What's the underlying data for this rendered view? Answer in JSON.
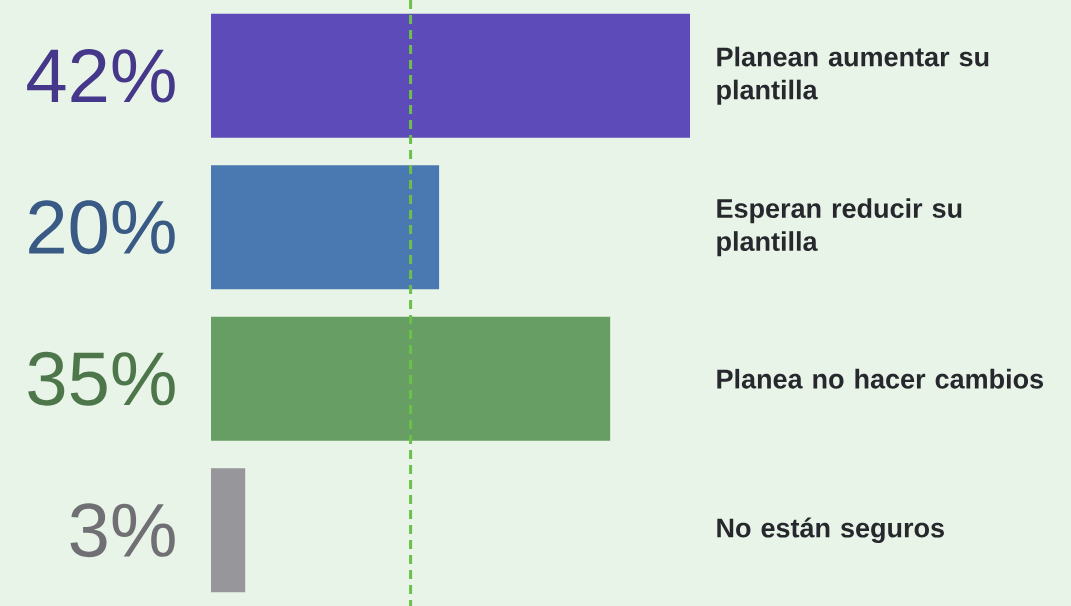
{
  "chart_data": {
    "type": "bar",
    "orientation": "horizontal",
    "categories": [
      "Planean aumentar su plantilla",
      "Esperan reducir su plantilla",
      "Planea no hacer cambios",
      "No están seguros"
    ],
    "values": [
      42,
      20,
      35,
      3
    ],
    "colors": [
      "#5c4bb8",
      "#4a78b0",
      "#679e63",
      "#96969b"
    ],
    "value_labels": [
      "42%",
      "20%",
      "35%",
      "3%"
    ],
    "ref_lines": [
      {
        "axis": "x",
        "value": 17.5,
        "color": "#6cc04a",
        "line_style": "dashed"
      }
    ]
  }
}
